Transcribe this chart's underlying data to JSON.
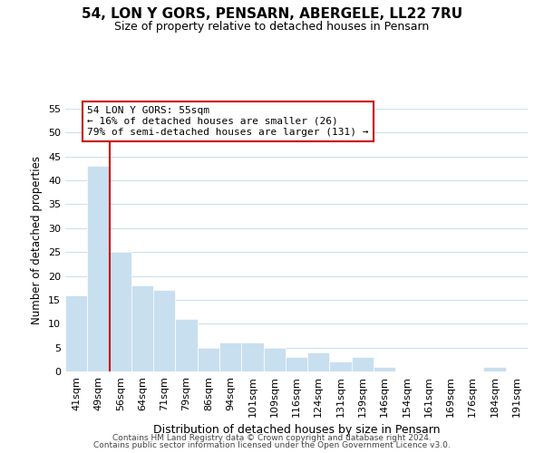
{
  "title": "54, LON Y GORS, PENSARN, ABERGELE, LL22 7RU",
  "subtitle": "Size of property relative to detached houses in Pensarn",
  "xlabel": "Distribution of detached houses by size in Pensarn",
  "ylabel": "Number of detached properties",
  "bar_color": "#c8dff0",
  "bar_edge_color": "#ffffff",
  "background_color": "#ffffff",
  "grid_color": "#ccdde8",
  "categories": [
    "41sqm",
    "49sqm",
    "56sqm",
    "64sqm",
    "71sqm",
    "79sqm",
    "86sqm",
    "94sqm",
    "101sqm",
    "109sqm",
    "116sqm",
    "124sqm",
    "131sqm",
    "139sqm",
    "146sqm",
    "154sqm",
    "161sqm",
    "169sqm",
    "176sqm",
    "184sqm",
    "191sqm"
  ],
  "values": [
    16,
    43,
    25,
    18,
    17,
    11,
    5,
    6,
    6,
    5,
    3,
    4,
    2,
    3,
    1,
    0,
    0,
    0,
    0,
    1,
    0
  ],
  "subject_line_idx": 2,
  "subject_line_color": "#cc0000",
  "annotation_line1": "54 LON Y GORS: 55sqm",
  "annotation_line2": "← 16% of detached houses are smaller (26)",
  "annotation_line3": "79% of semi-detached houses are larger (131) →",
  "annotation_box_color": "#ffffff",
  "annotation_box_edge_color": "#cc0000",
  "ylim": [
    0,
    55
  ],
  "yticks": [
    0,
    5,
    10,
    15,
    20,
    25,
    30,
    35,
    40,
    45,
    50,
    55
  ],
  "footer_line1": "Contains HM Land Registry data © Crown copyright and database right 2024.",
  "footer_line2": "Contains public sector information licensed under the Open Government Licence v3.0."
}
